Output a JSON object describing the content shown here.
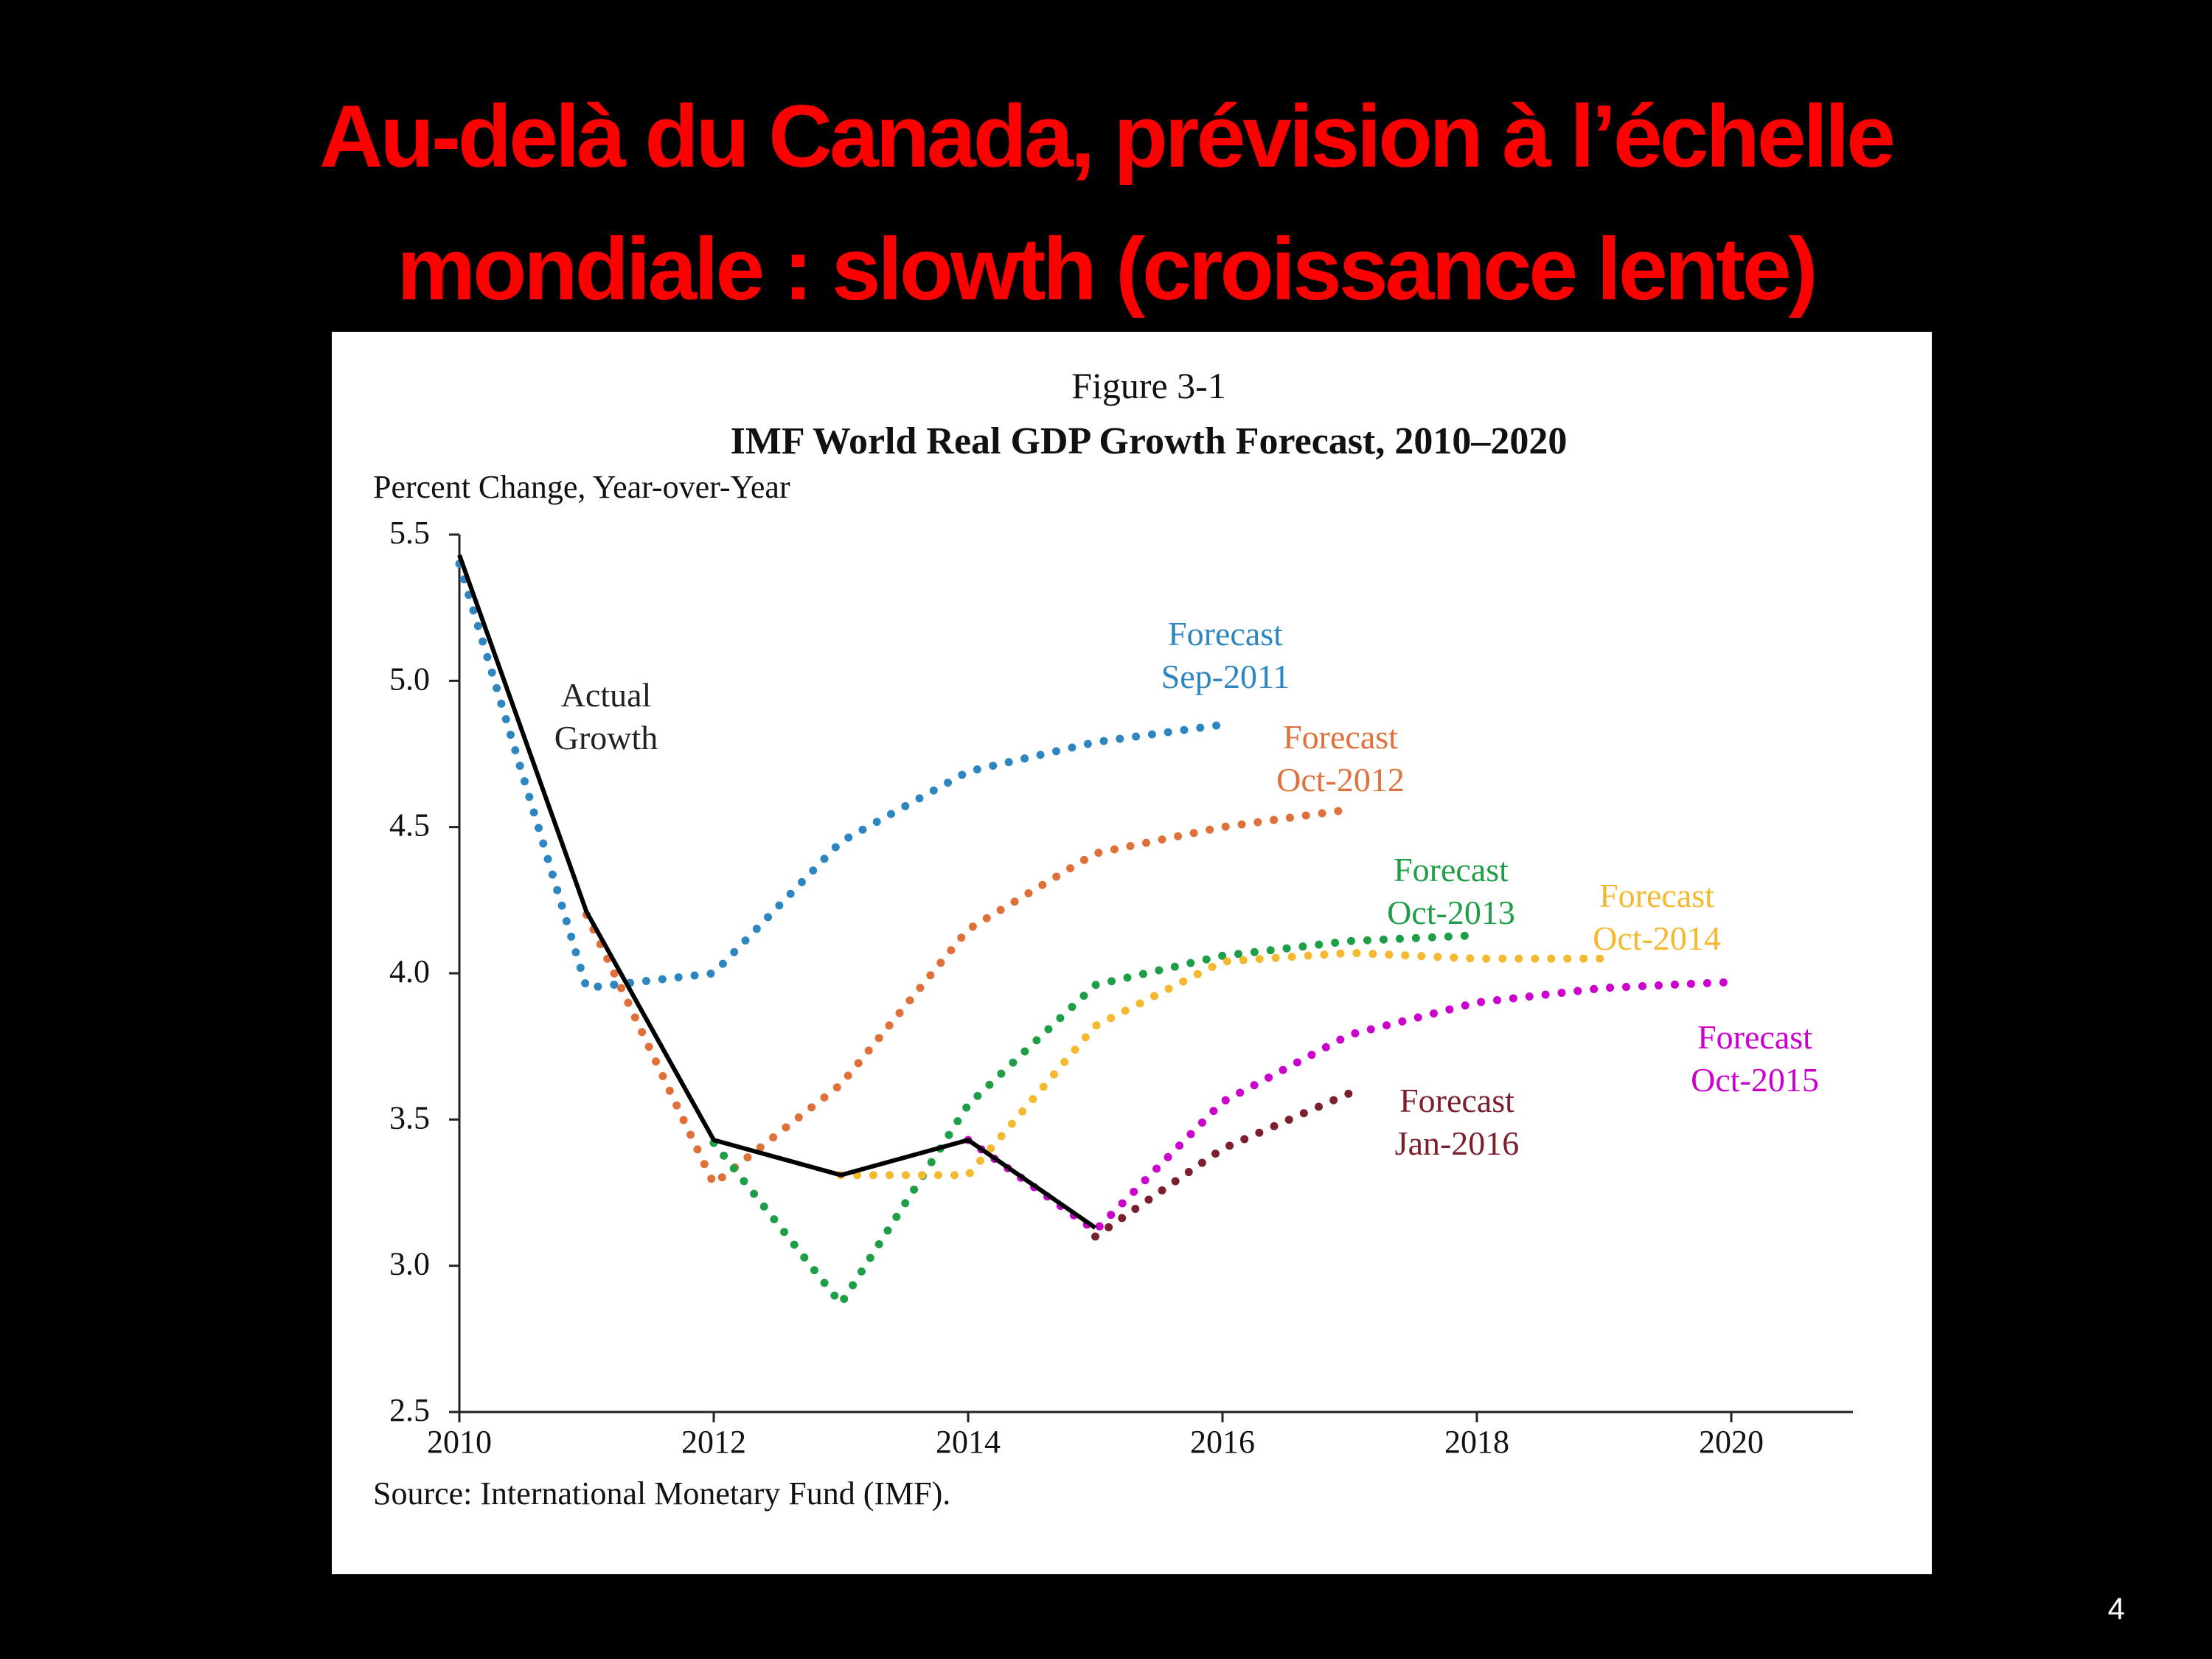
{
  "slide": {
    "title_line1": "Au-delà du Canada, prévision à l’échelle",
    "title_line2": "mondiale : slowth (croissance lente)",
    "page_number": "4",
    "title_color": "#ff0000",
    "background": "#000000"
  },
  "chart_data": {
    "type": "line",
    "figure_label": "Figure 3-1",
    "title": "IMF World Real GDP Growth Forecast, 2010–2020",
    "ylabel": "Percent Change, Year-over-Year",
    "source": "Source: International Monetary Fund (IMF).",
    "xlim": [
      2010,
      2021
    ],
    "ylim": [
      2.5,
      5.5
    ],
    "x_ticks": [
      2010,
      2012,
      2014,
      2016,
      2018,
      2020
    ],
    "y_ticks": [
      "5.5",
      "5.0",
      "4.5",
      "4.0",
      "3.5",
      "3.0",
      "2.5"
    ],
    "grid": false,
    "series": [
      {
        "name": "Forecast Sep-2011",
        "label_lines": [
          "Forecast",
          "Sep-2011"
        ],
        "color": "#2e86c1",
        "style": "dotted",
        "x": [
          2010,
          2011,
          2012,
          2013,
          2014,
          2015,
          2016
        ],
        "y": [
          5.4,
          3.95,
          4.0,
          4.45,
          4.69,
          4.79,
          4.85
        ]
      },
      {
        "name": "Forecast Oct-2012",
        "label_lines": [
          "Forecast",
          "Oct-2012"
        ],
        "color": "#e0703a",
        "style": "dotted",
        "x": [
          2011,
          2012,
          2013,
          2014,
          2015,
          2016,
          2017
        ],
        "y": [
          4.2,
          3.28,
          3.62,
          4.15,
          4.41,
          4.5,
          4.56
        ]
      },
      {
        "name": "Forecast Oct-2013",
        "label_lines": [
          "Forecast",
          "Oct-2013"
        ],
        "color": "#1f9e48",
        "style": "dotted",
        "x": [
          2012,
          2013,
          2014,
          2015,
          2016,
          2017,
          2018
        ],
        "y": [
          3.42,
          2.87,
          3.55,
          3.96,
          4.06,
          4.11,
          4.13
        ]
      },
      {
        "name": "Forecast Oct-2014",
        "label_lines": [
          "Forecast",
          "Oct-2014"
        ],
        "color": "#f5b82e",
        "style": "dotted",
        "x": [
          2013,
          2014,
          2015,
          2016,
          2017,
          2018,
          2019
        ],
        "y": [
          3.31,
          3.31,
          3.82,
          4.04,
          4.07,
          4.05,
          4.05
        ]
      },
      {
        "name": "Forecast Oct-2015",
        "label_lines": [
          "Forecast",
          "Oct-2015"
        ],
        "color": "#cc00cc",
        "style": "dotted",
        "x": [
          2014,
          2015,
          2016,
          2017,
          2018,
          2019,
          2020
        ],
        "y": [
          3.43,
          3.12,
          3.56,
          3.79,
          3.9,
          3.95,
          3.97
        ]
      },
      {
        "name": "Forecast Jan-2016",
        "label_lines": [
          "Forecast",
          "Jan-2016"
        ],
        "color": "#7a1f2b",
        "style": "dotted",
        "x": [
          2015,
          2016,
          2017
        ],
        "y": [
          3.1,
          3.4,
          3.59
        ]
      },
      {
        "name": "Actual Growth",
        "label_lines": [
          "Actual",
          "Growth"
        ],
        "color": "#000000",
        "style": "solid",
        "x": [
          2010,
          2011,
          2012,
          2013,
          2014,
          2015
        ],
        "y": [
          5.43,
          4.21,
          3.43,
          3.31,
          3.43,
          3.13
        ]
      }
    ]
  }
}
